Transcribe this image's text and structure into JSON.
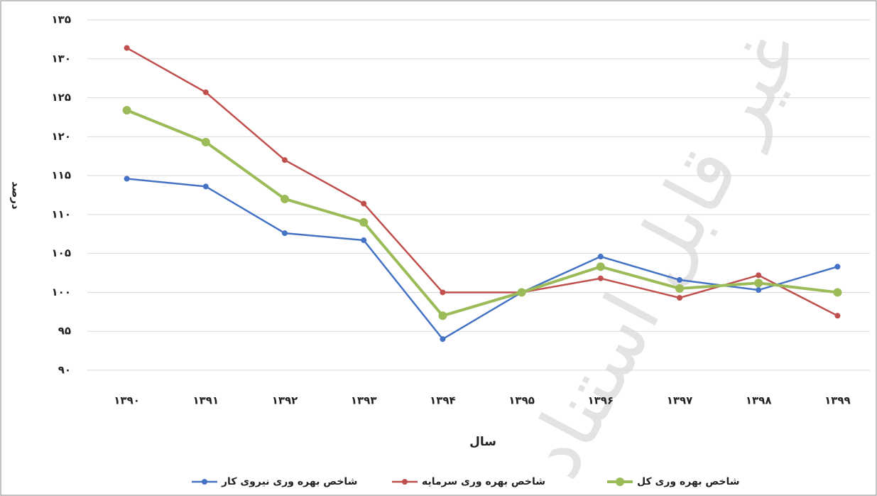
{
  "chart_data": {
    "type": "line",
    "ylabel": "درصد",
    "xlabel": "سال",
    "watermark": "غیر قابل استناد",
    "categories": [
      "۱۳۹۰",
      "۱۳۹۱",
      "۱۳۹۲",
      "۱۳۹۳",
      "۱۳۹۴",
      "۱۳۹۵",
      "۱۳۹۶",
      "۱۳۹۷",
      "۱۳۹۸",
      "۱۳۹۹"
    ],
    "series": [
      {
        "name": "شاخص بهره وری نیروی کار",
        "color": "#4472c4",
        "values": [
          114.6,
          113.6,
          107.6,
          106.7,
          94,
          100,
          104.6,
          101.6,
          100.3,
          103.3
        ]
      },
      {
        "name": "شاخص بهره وری سرمایه",
        "color": "#c0504d",
        "values": [
          131.4,
          125.7,
          117,
          111.4,
          100,
          100,
          101.8,
          99.3,
          102.2,
          97
        ]
      },
      {
        "name": "شاخص بهره وری کل",
        "color": "#9bbb59",
        "values": [
          123.4,
          119.3,
          112,
          109,
          97,
          100,
          103.3,
          100.5,
          101.2,
          100
        ]
      }
    ],
    "ylim": [
      90,
      135
    ],
    "yticks": [
      {
        "value": 90,
        "label": "۹۰"
      },
      {
        "value": 95,
        "label": "۹۵"
      },
      {
        "value": 100,
        "label": "۱۰۰"
      },
      {
        "value": 105,
        "label": "۱۰۵"
      },
      {
        "value": 110,
        "label": "۱۱۰"
      },
      {
        "value": 115,
        "label": "۱۱۵"
      },
      {
        "value": 120,
        "label": "۱۲۰"
      },
      {
        "value": 125,
        "label": "۱۲۵"
      },
      {
        "value": 130,
        "label": "۱۳۰"
      },
      {
        "value": 135,
        "label": "۱۳۵"
      }
    ],
    "grid": true,
    "legend": "bottom"
  }
}
